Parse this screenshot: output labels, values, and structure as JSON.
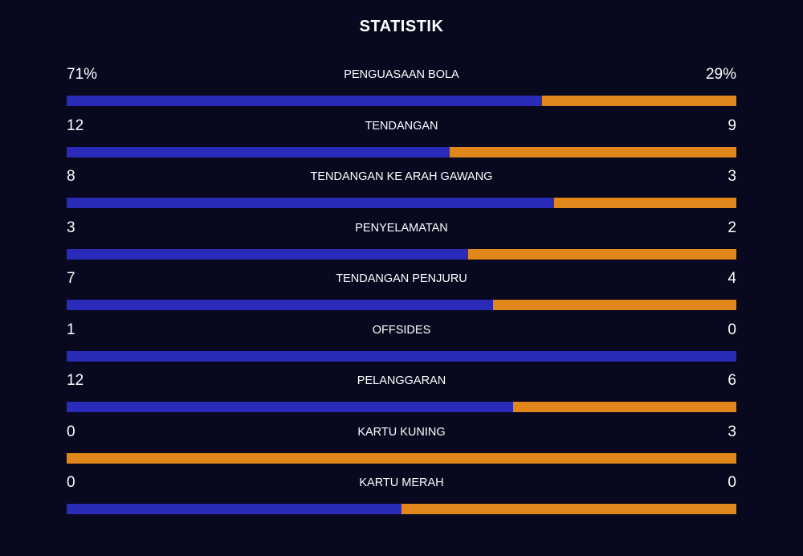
{
  "title": "STATISTIK",
  "colors": {
    "background": "#08081f",
    "home": "#2a2bb8",
    "away": "#e0861a"
  },
  "chart_data": {
    "type": "bar",
    "title": "STATISTIK",
    "orientation": "horizontal-stacked",
    "categories": [
      "PENGUASAAN BOLA",
      "TENDANGAN",
      "TENDANGAN KE ARAH GAWANG",
      "PENYELAMATAN",
      "TENDANGAN PENJURU",
      "OFFSIDES",
      "PELANGGARAN",
      "KARTU KUNING",
      "KARTU MERAH"
    ],
    "rows": [
      {
        "label": "PENGUASAAN BOLA",
        "home": 71,
        "away": 29,
        "home_text": "71%",
        "away_text": "29%"
      },
      {
        "label": "TENDANGAN",
        "home": 12,
        "away": 9,
        "home_text": "12",
        "away_text": "9"
      },
      {
        "label": "TENDANGAN KE ARAH GAWANG",
        "home": 8,
        "away": 3,
        "home_text": "8",
        "away_text": "3"
      },
      {
        "label": "PENYELAMATAN",
        "home": 3,
        "away": 2,
        "home_text": "3",
        "away_text": "2"
      },
      {
        "label": "TENDANGAN PENJURU",
        "home": 7,
        "away": 4,
        "home_text": "7",
        "away_text": "4"
      },
      {
        "label": "OFFSIDES",
        "home": 1,
        "away": 0,
        "home_text": "1",
        "away_text": "0"
      },
      {
        "label": "PELANGGARAN",
        "home": 12,
        "away": 6,
        "home_text": "12",
        "away_text": "6"
      },
      {
        "label": "KARTU KUNING",
        "home": 0,
        "away": 3,
        "home_text": "0",
        "away_text": "3"
      },
      {
        "label": "KARTU MERAH",
        "home": 0,
        "away": 0,
        "home_text": "0",
        "away_text": "0"
      }
    ],
    "legend": "none",
    "grid": false
  }
}
